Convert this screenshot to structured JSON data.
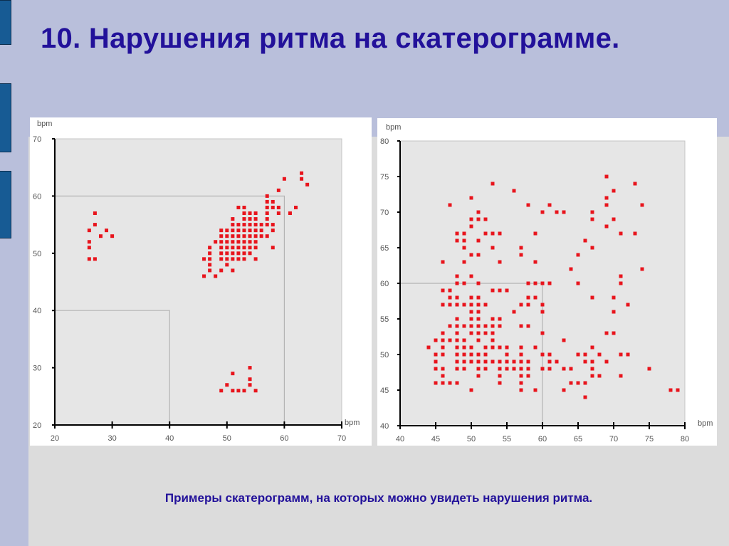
{
  "slide": {
    "title": "10. Нарушения ритма на скатерограмме.",
    "caption": "Примеры скатерограмм, на которых можно увидеть нарушения ритма.",
    "colors": {
      "title": "#22119a",
      "background_band": "#b9bfdb",
      "accent_block": "#175b94",
      "point": "#e8141c",
      "plot_bg": "#e6e6e6"
    }
  },
  "chart_data": [
    {
      "type": "scatter",
      "title": "",
      "xlabel": "bpm",
      "ylabel": "bpm",
      "xlim": [
        20,
        70
      ],
      "ylim": [
        20,
        70
      ],
      "xticks": [
        20,
        30,
        40,
        50,
        60,
        70
      ],
      "yticks": [
        20,
        30,
        40,
        50,
        60,
        70
      ],
      "reference_boxes": [
        {
          "x": [
            20,
            40
          ],
          "y": [
            20,
            40
          ]
        },
        {
          "x": [
            20,
            60
          ],
          "y": [
            20,
            60
          ]
        }
      ],
      "grid": false,
      "points": [
        [
          27,
          57
        ],
        [
          27,
          55
        ],
        [
          26,
          54
        ],
        [
          29,
          54
        ],
        [
          28,
          53
        ],
        [
          30,
          53
        ],
        [
          26,
          52
        ],
        [
          26,
          51
        ],
        [
          26,
          49
        ],
        [
          27,
          49
        ],
        [
          54,
          30
        ],
        [
          51,
          29
        ],
        [
          54,
          28
        ],
        [
          50,
          27
        ],
        [
          54,
          27
        ],
        [
          49,
          26
        ],
        [
          51,
          26
        ],
        [
          52,
          26
        ],
        [
          53,
          26
        ],
        [
          55,
          26
        ],
        [
          60,
          63
        ],
        [
          63,
          64
        ],
        [
          63,
          63
        ],
        [
          64,
          62
        ],
        [
          59,
          61
        ],
        [
          57,
          60
        ],
        [
          57,
          59
        ],
        [
          58,
          59
        ],
        [
          57,
          58
        ],
        [
          58,
          58
        ],
        [
          59,
          58
        ],
        [
          52,
          58
        ],
        [
          53,
          58
        ],
        [
          62,
          58
        ],
        [
          53,
          57
        ],
        [
          54,
          57
        ],
        [
          55,
          57
        ],
        [
          57,
          57
        ],
        [
          59,
          57
        ],
        [
          61,
          57
        ],
        [
          51,
          56
        ],
        [
          53,
          56
        ],
        [
          54,
          56
        ],
        [
          55,
          56
        ],
        [
          57,
          56
        ],
        [
          51,
          55
        ],
        [
          52,
          55
        ],
        [
          53,
          55
        ],
        [
          54,
          55
        ],
        [
          55,
          55
        ],
        [
          56,
          55
        ],
        [
          57,
          55
        ],
        [
          58,
          55
        ],
        [
          49,
          54
        ],
        [
          50,
          54
        ],
        [
          51,
          54
        ],
        [
          52,
          54
        ],
        [
          53,
          54
        ],
        [
          54,
          54
        ],
        [
          55,
          54
        ],
        [
          56,
          54
        ],
        [
          58,
          54
        ],
        [
          49,
          53
        ],
        [
          50,
          53
        ],
        [
          51,
          53
        ],
        [
          52,
          53
        ],
        [
          53,
          53
        ],
        [
          54,
          53
        ],
        [
          55,
          53
        ],
        [
          56,
          53
        ],
        [
          57,
          53
        ],
        [
          48,
          52
        ],
        [
          49,
          52
        ],
        [
          50,
          52
        ],
        [
          51,
          52
        ],
        [
          52,
          52
        ],
        [
          53,
          52
        ],
        [
          54,
          52
        ],
        [
          55,
          52
        ],
        [
          47,
          51
        ],
        [
          49,
          51
        ],
        [
          50,
          51
        ],
        [
          51,
          51
        ],
        [
          52,
          51
        ],
        [
          53,
          51
        ],
        [
          54,
          51
        ],
        [
          55,
          51
        ],
        [
          58,
          51
        ],
        [
          47,
          50
        ],
        [
          49,
          50
        ],
        [
          50,
          50
        ],
        [
          51,
          50
        ],
        [
          52,
          50
        ],
        [
          53,
          50
        ],
        [
          54,
          50
        ],
        [
          46,
          49
        ],
        [
          47,
          49
        ],
        [
          49,
          49
        ],
        [
          50,
          49
        ],
        [
          51,
          49
        ],
        [
          52,
          49
        ],
        [
          53,
          49
        ],
        [
          55,
          49
        ],
        [
          47,
          48
        ],
        [
          50,
          48
        ],
        [
          47,
          47
        ],
        [
          49,
          47
        ],
        [
          51,
          47
        ],
        [
          46,
          46
        ],
        [
          48,
          46
        ]
      ]
    },
    {
      "type": "scatter",
      "title": "",
      "xlabel": "bpm",
      "ylabel": "bpm",
      "xlim": [
        40,
        80
      ],
      "ylim": [
        40,
        80
      ],
      "xticks": [
        40,
        45,
        50,
        55,
        60,
        65,
        70,
        75,
        80
      ],
      "yticks": [
        40,
        45,
        50,
        55,
        60,
        65,
        70,
        75,
        80
      ],
      "reference_boxes": [
        {
          "x": [
            40,
            60
          ],
          "y": [
            40,
            60
          ]
        }
      ],
      "grid": false,
      "points": [
        [
          69,
          75
        ],
        [
          53,
          74
        ],
        [
          73,
          74
        ],
        [
          56,
          73
        ],
        [
          70,
          73
        ],
        [
          50,
          72
        ],
        [
          69,
          72
        ],
        [
          47,
          71
        ],
        [
          58,
          71
        ],
        [
          61,
          71
        ],
        [
          69,
          71
        ],
        [
          74,
          71
        ],
        [
          51,
          70
        ],
        [
          60,
          70
        ],
        [
          62,
          70
        ],
        [
          63,
          70
        ],
        [
          67,
          70
        ],
        [
          50,
          69
        ],
        [
          51,
          69
        ],
        [
          52,
          69
        ],
        [
          67,
          69
        ],
        [
          70,
          69
        ],
        [
          50,
          68
        ],
        [
          69,
          68
        ],
        [
          48,
          67
        ],
        [
          49,
          67
        ],
        [
          52,
          67
        ],
        [
          53,
          67
        ],
        [
          54,
          67
        ],
        [
          59,
          67
        ],
        [
          71,
          67
        ],
        [
          73,
          67
        ],
        [
          48,
          66
        ],
        [
          49,
          66
        ],
        [
          51,
          66
        ],
        [
          66,
          66
        ],
        [
          49,
          65
        ],
        [
          53,
          65
        ],
        [
          57,
          65
        ],
        [
          67,
          65
        ],
        [
          50,
          64
        ],
        [
          51,
          64
        ],
        [
          57,
          64
        ],
        [
          65,
          64
        ],
        [
          46,
          63
        ],
        [
          49,
          63
        ],
        [
          54,
          63
        ],
        [
          59,
          63
        ],
        [
          64,
          62
        ],
        [
          74,
          62
        ],
        [
          48,
          61
        ],
        [
          50,
          61
        ],
        [
          71,
          61
        ],
        [
          48,
          60
        ],
        [
          49,
          60
        ],
        [
          51,
          60
        ],
        [
          58,
          60
        ],
        [
          59,
          60
        ],
        [
          60,
          60
        ],
        [
          61,
          60
        ],
        [
          65,
          60
        ],
        [
          71,
          60
        ],
        [
          46,
          59
        ],
        [
          47,
          59
        ],
        [
          53,
          59
        ],
        [
          54,
          59
        ],
        [
          55,
          59
        ],
        [
          47,
          58
        ],
        [
          48,
          58
        ],
        [
          50,
          58
        ],
        [
          51,
          58
        ],
        [
          58,
          58
        ],
        [
          59,
          58
        ],
        [
          67,
          58
        ],
        [
          70,
          58
        ],
        [
          46,
          57
        ],
        [
          47,
          57
        ],
        [
          48,
          57
        ],
        [
          49,
          57
        ],
        [
          50,
          57
        ],
        [
          51,
          57
        ],
        [
          52,
          57
        ],
        [
          57,
          57
        ],
        [
          58,
          57
        ],
        [
          60,
          57
        ],
        [
          72,
          57
        ],
        [
          50,
          56
        ],
        [
          51,
          56
        ],
        [
          56,
          56
        ],
        [
          60,
          56
        ],
        [
          70,
          56
        ],
        [
          48,
          55
        ],
        [
          50,
          55
        ],
        [
          51,
          55
        ],
        [
          53,
          55
        ],
        [
          54,
          55
        ],
        [
          47,
          54
        ],
        [
          48,
          54
        ],
        [
          49,
          54
        ],
        [
          50,
          54
        ],
        [
          51,
          54
        ],
        [
          52,
          54
        ],
        [
          53,
          54
        ],
        [
          54,
          54
        ],
        [
          57,
          54
        ],
        [
          58,
          54
        ],
        [
          46,
          53
        ],
        [
          48,
          53
        ],
        [
          50,
          53
        ],
        [
          51,
          53
        ],
        [
          52,
          53
        ],
        [
          53,
          53
        ],
        [
          60,
          53
        ],
        [
          69,
          53
        ],
        [
          70,
          53
        ],
        [
          45,
          52
        ],
        [
          46,
          52
        ],
        [
          47,
          52
        ],
        [
          48,
          52
        ],
        [
          49,
          52
        ],
        [
          51,
          52
        ],
        [
          53,
          52
        ],
        [
          63,
          52
        ],
        [
          44,
          51
        ],
        [
          46,
          51
        ],
        [
          48,
          51
        ],
        [
          49,
          51
        ],
        [
          50,
          51
        ],
        [
          52,
          51
        ],
        [
          53,
          51
        ],
        [
          54,
          51
        ],
        [
          55,
          51
        ],
        [
          57,
          51
        ],
        [
          59,
          51
        ],
        [
          67,
          51
        ],
        [
          45,
          50
        ],
        [
          46,
          50
        ],
        [
          48,
          50
        ],
        [
          49,
          50
        ],
        [
          50,
          50
        ],
        [
          51,
          50
        ],
        [
          52,
          50
        ],
        [
          55,
          50
        ],
        [
          57,
          50
        ],
        [
          60,
          50
        ],
        [
          61,
          50
        ],
        [
          65,
          50
        ],
        [
          66,
          50
        ],
        [
          68,
          50
        ],
        [
          71,
          50
        ],
        [
          72,
          50
        ],
        [
          45,
          49
        ],
        [
          48,
          49
        ],
        [
          49,
          49
        ],
        [
          50,
          49
        ],
        [
          51,
          49
        ],
        [
          52,
          49
        ],
        [
          53,
          49
        ],
        [
          54,
          49
        ],
        [
          55,
          49
        ],
        [
          56,
          49
        ],
        [
          57,
          49
        ],
        [
          58,
          49
        ],
        [
          61,
          49
        ],
        [
          62,
          49
        ],
        [
          66,
          49
        ],
        [
          67,
          49
        ],
        [
          69,
          49
        ],
        [
          45,
          48
        ],
        [
          46,
          48
        ],
        [
          48,
          48
        ],
        [
          49,
          48
        ],
        [
          51,
          48
        ],
        [
          52,
          48
        ],
        [
          54,
          48
        ],
        [
          55,
          48
        ],
        [
          56,
          48
        ],
        [
          57,
          48
        ],
        [
          58,
          48
        ],
        [
          60,
          48
        ],
        [
          61,
          48
        ],
        [
          63,
          48
        ],
        [
          64,
          48
        ],
        [
          67,
          48
        ],
        [
          75,
          48
        ],
        [
          46,
          47
        ],
        [
          51,
          47
        ],
        [
          54,
          47
        ],
        [
          57,
          47
        ],
        [
          58,
          47
        ],
        [
          67,
          47
        ],
        [
          68,
          47
        ],
        [
          71,
          47
        ],
        [
          45,
          46
        ],
        [
          46,
          46
        ],
        [
          47,
          46
        ],
        [
          48,
          46
        ],
        [
          54,
          46
        ],
        [
          57,
          46
        ],
        [
          64,
          46
        ],
        [
          65,
          46
        ],
        [
          66,
          46
        ],
        [
          50,
          45
        ],
        [
          57,
          45
        ],
        [
          59,
          45
        ],
        [
          63,
          45
        ],
        [
          78,
          45
        ],
        [
          79,
          45
        ],
        [
          66,
          44
        ]
      ]
    }
  ]
}
